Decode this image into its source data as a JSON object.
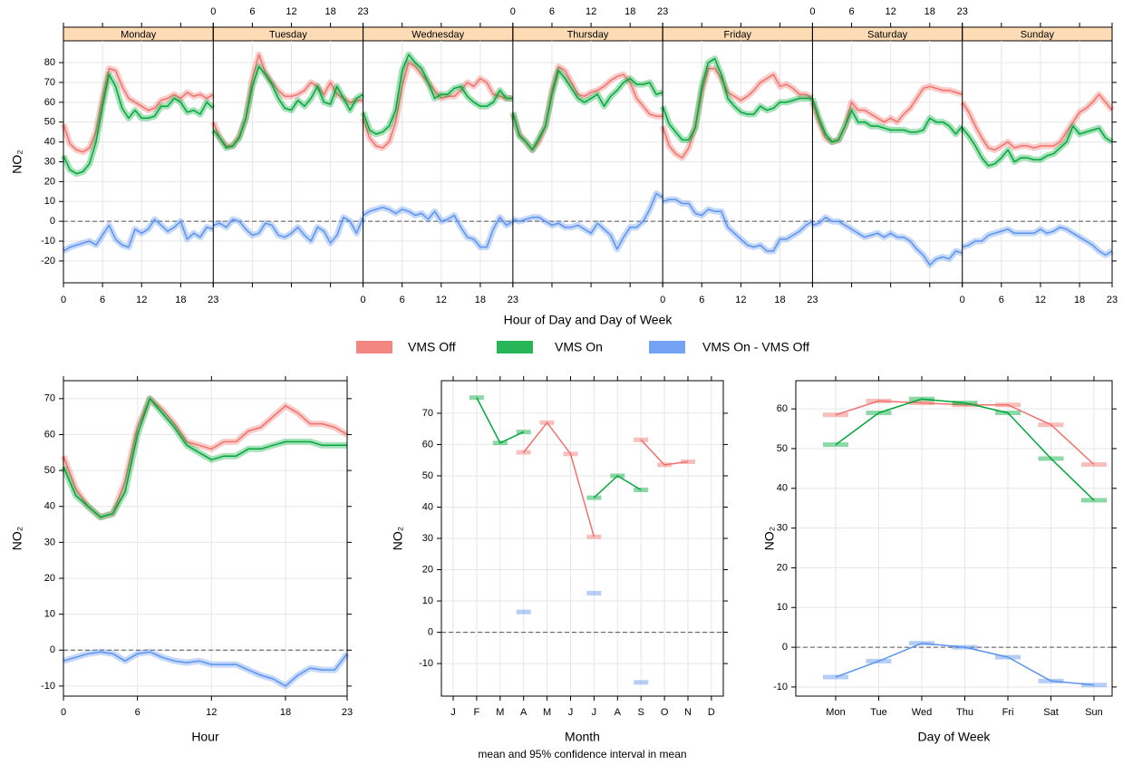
{
  "chart_data": [
    {
      "type": "line",
      "xlabel": "Hour of Day and Day of Week",
      "ylabel": "NO₂",
      "panels": [
        "Monday",
        "Tuesday",
        "Wednesday",
        "Thursday",
        "Friday",
        "Saturday",
        "Sunday"
      ],
      "xlim": [
        0,
        23
      ],
      "xticks": [
        0,
        6,
        12,
        18,
        23
      ],
      "ylim": [
        -31,
        91
      ],
      "yticks": [
        -20,
        -10,
        0,
        10,
        20,
        30,
        40,
        50,
        60,
        70,
        80
      ],
      "grid": true,
      "hline": 0,
      "series": [
        {
          "name": "VMS Off",
          "color": "#f2716b",
          "values": [
            [
              49,
              39,
              36,
              35,
              37,
              45,
              62,
              77,
              76,
              68,
              62,
              60,
              58,
              56,
              57,
              61,
              62,
              64,
              62,
              65,
              63,
              64,
              62,
              64
            ],
            [
              50,
              42,
              38,
              38,
              43,
              52,
              72,
              84,
              75,
              70,
              66,
              63,
              63,
              64,
              66,
              70,
              68,
              64,
              70,
              64,
              62,
              60,
              61,
              61
            ],
            [
              52,
              42,
              38,
              37,
              40,
              50,
              68,
              80,
              78,
              74,
              70,
              66,
              62,
              63,
              63,
              66,
              70,
              68,
              72,
              70,
              64,
              63,
              62,
              62
            ],
            [
              54,
              44,
              40,
              36,
              40,
              48,
              66,
              78,
              76,
              70,
              64,
              63,
              65,
              66,
              68,
              71,
              73,
              74,
              70,
              62,
              58,
              54,
              53,
              53
            ],
            [
              48,
              38,
              34,
              32,
              37,
              48,
              65,
              77,
              77,
              72,
              65,
              63,
              61,
              63,
              66,
              70,
              72,
              74,
              68,
              69,
              67,
              64,
              64,
              62
            ],
            [
              60,
              50,
              42,
              40,
              41,
              48,
              60,
              56,
              56,
              54,
              52,
              50,
              52,
              50,
              54,
              57,
              62,
              67,
              68,
              67,
              66,
              66,
              65,
              64
            ],
            [
              60,
              55,
              48,
              42,
              37,
              36,
              38,
              40,
              37,
              38,
              38,
              37,
              38,
              38,
              38,
              40,
              45,
              50,
              55,
              57,
              60,
              64,
              60,
              56
            ]
          ]
        },
        {
          "name": "VMS On",
          "color": "#00a83a",
          "values": [
            [
              33,
              26,
              24,
              25,
              29,
              40,
              58,
              74,
              68,
              57,
              52,
              56,
              52,
              52,
              53,
              58,
              58,
              62,
              60,
              55,
              56,
              54,
              60,
              57
            ],
            [
              46,
              42,
              37,
              38,
              42,
              52,
              68,
              78,
              74,
              69,
              62,
              57,
              56,
              61,
              58,
              62,
              68,
              60,
              59,
              68,
              62,
              56,
              62,
              64
            ],
            [
              55,
              46,
              44,
              45,
              48,
              56,
              76,
              84,
              80,
              77,
              70,
              62,
              64,
              64,
              67,
              68,
              63,
              60,
              58,
              58,
              60,
              66,
              62,
              62
            ],
            [
              55,
              43,
              40,
              36,
              42,
              48,
              64,
              76,
              72,
              67,
              62,
              60,
              62,
              64,
              58,
              63,
              66,
              70,
              72,
              69,
              69,
              70,
              64,
              65
            ],
            [
              58,
              49,
              45,
              41,
              41,
              47,
              68,
              80,
              82,
              74,
              62,
              58,
              55,
              54,
              54,
              58,
              56,
              57,
              60,
              60,
              61,
              62,
              62,
              62
            ],
            [
              62,
              52,
              44,
              40,
              41,
              48,
              56,
              50,
              50,
              48,
              48,
              47,
              46,
              46,
              46,
              45,
              45,
              46,
              52,
              50,
              50,
              48,
              44,
              48
            ],
            [
              47,
              43,
              38,
              32,
              28,
              29,
              32,
              36,
              30,
              32,
              32,
              31,
              31,
              33,
              34,
              37,
              40,
              48,
              44,
              45,
              46,
              47,
              42,
              40
            ]
          ]
        },
        {
          "name": "VMS On - VMS Off",
          "color": "#5b93f0",
          "values": [
            [
              -15,
              -13,
              -12,
              -11,
              -10,
              -12,
              -7,
              -2,
              -9,
              -12,
              -13,
              -4,
              -6,
              -4,
              1,
              -2,
              -5,
              -3,
              0,
              -9,
              -6,
              -8,
              -3,
              -4
            ],
            [
              -2,
              -1,
              -3,
              1,
              0,
              -4,
              -7,
              -6,
              -1,
              -2,
              -7,
              -8,
              -6,
              -3,
              -7,
              -10,
              -3,
              -5,
              -11,
              -7,
              2,
              0,
              -6,
              2
            ],
            [
              3,
              5,
              6,
              7,
              6,
              4,
              6,
              5,
              3,
              4,
              1,
              5,
              0,
              1,
              3,
              -3,
              -8,
              -9,
              -13,
              -13,
              -4,
              2,
              -2,
              0
            ],
            [
              1,
              0,
              1,
              2,
              2,
              0,
              -2,
              -1,
              -3,
              -3,
              -2,
              -4,
              -6,
              -1,
              -4,
              -7,
              -14,
              -8,
              -3,
              -3,
              0,
              6,
              14,
              12
            ],
            [
              10,
              11,
              11,
              9,
              9,
              4,
              3,
              6,
              5,
              5,
              -3,
              -6,
              -9,
              -12,
              -13,
              -12,
              -15,
              -15,
              -9,
              -9,
              -7,
              -5,
              -2,
              0
            ],
            [
              -2,
              -1,
              2,
              0,
              0,
              -2,
              -4,
              -6,
              -8,
              -7,
              -6,
              -8,
              -6,
              -8,
              -8,
              -10,
              -14,
              -17,
              -22,
              -19,
              -18,
              -19,
              -15,
              -16
            ],
            [
              -13,
              -12,
              -10,
              -10,
              -7,
              -6,
              -5,
              -4,
              -6,
              -6,
              -6,
              -6,
              -4,
              -6,
              -5,
              -3,
              -4,
              -6,
              -8,
              -10,
              -12,
              -15,
              -17,
              -15
            ]
          ]
        }
      ]
    },
    {
      "type": "line",
      "xlabel": "Hour",
      "ylabel": "NO₂",
      "x": [
        0,
        1,
        2,
        3,
        4,
        5,
        6,
        7,
        8,
        9,
        10,
        11,
        12,
        13,
        14,
        15,
        16,
        17,
        18,
        19,
        20,
        21,
        22,
        23
      ],
      "xlim": [
        0,
        23
      ],
      "xticks": [
        0,
        6,
        12,
        18,
        23
      ],
      "ylim": [
        -12.8,
        75
      ],
      "yticks": [
        -10,
        0,
        10,
        20,
        30,
        40,
        50,
        60,
        70
      ],
      "grid": true,
      "hline": 0,
      "series": [
        {
          "color": "#f2716b",
          "values": [
            54,
            45,
            40,
            37,
            38,
            47,
            62,
            70,
            67,
            63,
            58,
            57,
            56,
            58,
            58,
            61,
            62,
            65,
            68,
            66,
            63,
            63,
            62,
            60
          ]
        },
        {
          "color": "#00a83a",
          "values": [
            51,
            43,
            40,
            37,
            38,
            44,
            60,
            70,
            66,
            62,
            57,
            55,
            53,
            54,
            54,
            56,
            56,
            57,
            58,
            58,
            58,
            57,
            57,
            57
          ]
        },
        {
          "color": "#5b93f0",
          "values": [
            -3,
            -2,
            -1,
            -0.5,
            -1,
            -3,
            -1,
            -0.5,
            -2,
            -3,
            -3.5,
            -3,
            -4,
            -4,
            -4,
            -5.5,
            -7,
            -8,
            -10,
            -7,
            -5,
            -5.5,
            -5.5,
            -1
          ]
        }
      ]
    },
    {
      "type": "line",
      "xlabel": "Month",
      "ylabel": "NO₂",
      "caption": "mean and 95% confidence interval in mean",
      "categories": [
        "J",
        "F",
        "M",
        "A",
        "M",
        "J",
        "J",
        "A",
        "S",
        "O",
        "N",
        "D"
      ],
      "ylim": [
        -20.4,
        80.4
      ],
      "yticks": [
        -10,
        0,
        10,
        20,
        30,
        40,
        50,
        60,
        70
      ],
      "grid": true,
      "hline": 0,
      "interval_bars": true,
      "series": [
        {
          "color": "#f2716b",
          "values": [
            null,
            null,
            null,
            57.5,
            67,
            57,
            30.5,
            null,
            61.5,
            53.5,
            54.5,
            null
          ]
        },
        {
          "color": "#00a83a",
          "values": [
            null,
            75,
            60.5,
            64,
            null,
            null,
            43,
            50,
            45.5,
            null,
            null,
            null
          ]
        },
        {
          "color": "#5b93f0",
          "values": [
            null,
            null,
            null,
            6.5,
            null,
            null,
            12.5,
            null,
            -16,
            null,
            null,
            null
          ]
        }
      ]
    },
    {
      "type": "line",
      "xlabel": "Day of Week",
      "ylabel": "NO₂",
      "categories": [
        "Mon",
        "Tue",
        "Wed",
        "Thu",
        "Fri",
        "Sat",
        "Sun"
      ],
      "ylim": [
        -12.3,
        67.1
      ],
      "yticks": [
        -10,
        0,
        10,
        20,
        30,
        40,
        50,
        60
      ],
      "grid": true,
      "hline": 0,
      "interval_bars": true,
      "series": [
        {
          "color": "#f2716b",
          "values": [
            58.5,
            62,
            61.5,
            61,
            61,
            56,
            46
          ]
        },
        {
          "color": "#00a83a",
          "values": [
            51,
            59,
            62.5,
            61.5,
            59,
            47.5,
            37
          ]
        },
        {
          "color": "#5b93f0",
          "values": [
            -7.5,
            -3.5,
            1,
            0,
            -2.5,
            -8.5,
            -9.5
          ]
        }
      ]
    }
  ]
}
